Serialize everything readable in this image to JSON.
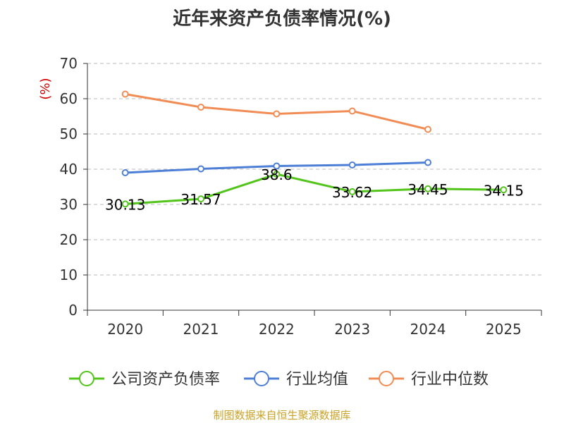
{
  "chart_data": {
    "type": "line",
    "title": "近年来资产负债率情况(%)",
    "ylabel": "(%)",
    "categories": [
      "2020",
      "2021",
      "2022",
      "2023",
      "2024",
      "2025"
    ],
    "ylim": [
      0,
      70
    ],
    "yticks": [
      0,
      10,
      20,
      30,
      40,
      50,
      60,
      70
    ],
    "grid": true,
    "legend_position": "bottom",
    "series": [
      {
        "name": "公司资产负债率",
        "color": "#52c41a",
        "values": [
          30.13,
          31.57,
          38.6,
          33.62,
          34.45,
          34.15
        ],
        "labels": [
          "30.13",
          "31.57",
          "38.6",
          "33.62",
          "34.45",
          "34.15"
        ]
      },
      {
        "name": "行业均值",
        "color": "#4e7fd6",
        "values": [
          39.0,
          40.1,
          40.9,
          41.2,
          41.9,
          null
        ]
      },
      {
        "name": "行业中位数",
        "color": "#f28c55",
        "values": [
          61.3,
          57.6,
          55.7,
          56.5,
          51.3,
          null
        ]
      }
    ]
  },
  "source_note": "制图数据来自恒生聚源数据库"
}
